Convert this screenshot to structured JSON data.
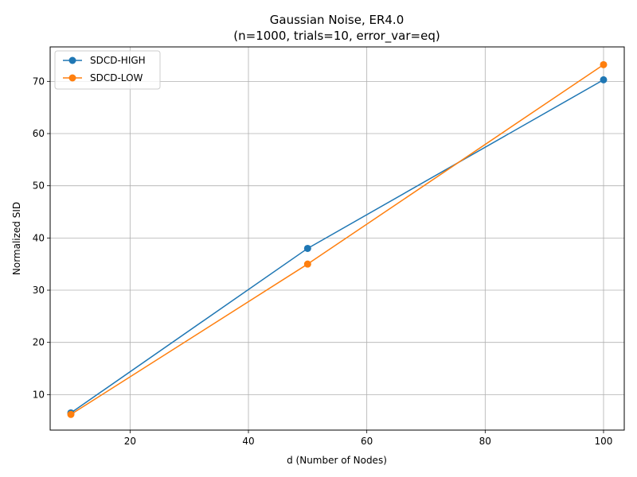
{
  "chart_data": {
    "type": "line",
    "title": "Gaussian Noise, ER4.0",
    "subtitle": "(n=1000, trials=10, error_var=eq)",
    "xlabel": "d (Number of Nodes)",
    "ylabel": "Normalized SID",
    "x": [
      10,
      50,
      100
    ],
    "xlim": [
      6.5,
      103.5
    ],
    "ylim": [
      3.2,
      76.6
    ],
    "xticks": [
      20,
      40,
      60,
      80,
      100
    ],
    "yticks": [
      10,
      20,
      30,
      40,
      50,
      60,
      70
    ],
    "grid": true,
    "legend_position": "top-left",
    "series": [
      {
        "name": "SDCD-HIGH",
        "color": "#1f77b4",
        "values": [
          6.5,
          38.0,
          70.3
        ]
      },
      {
        "name": "SDCD-LOW",
        "color": "#ff7f0e",
        "values": [
          6.2,
          35.0,
          73.2
        ]
      }
    ]
  }
}
